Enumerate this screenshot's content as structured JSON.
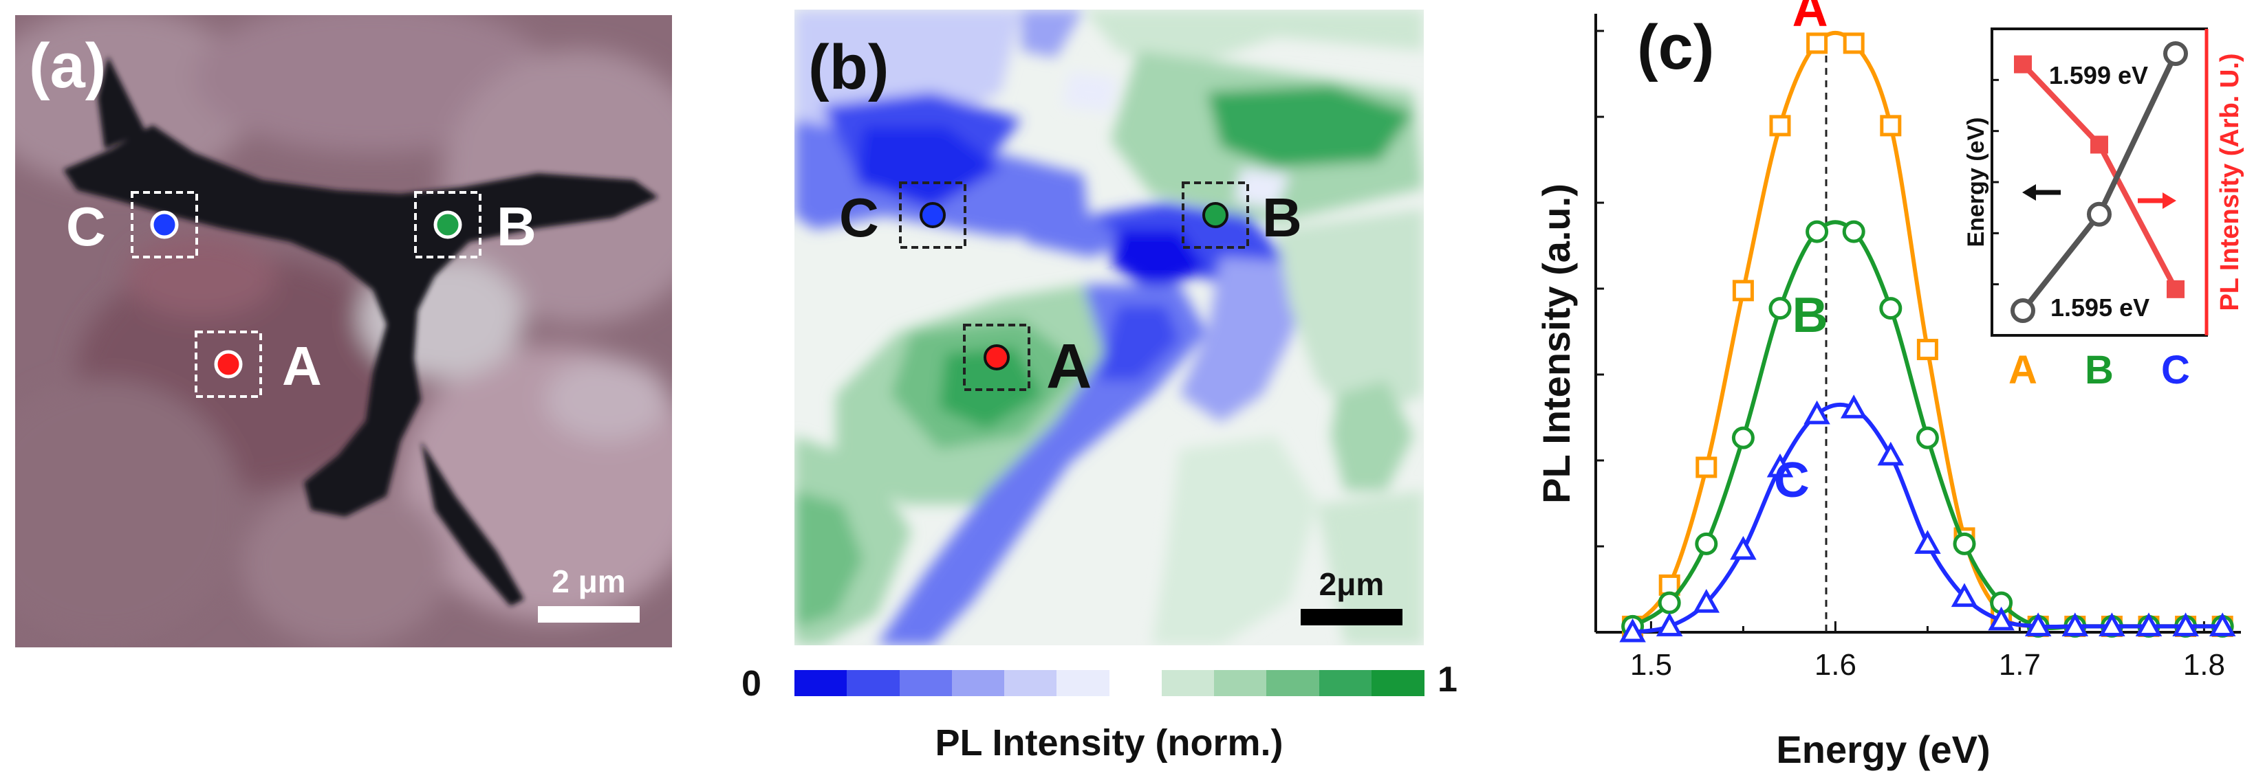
{
  "panel_a": {
    "label": "(a)",
    "scale_bar": "2 μm",
    "points": [
      {
        "name": "C",
        "color": "#1a3cff"
      },
      {
        "name": "B",
        "color": "#1fa048"
      },
      {
        "name": "A",
        "color": "#ff1a1a"
      }
    ]
  },
  "panel_b": {
    "label": "(b)",
    "scale_bar": "2μm",
    "colorbar_min": "0",
    "colorbar_max": "1",
    "colorbar_label": "PL Intensity (norm.)",
    "colorbar_colors": [
      "#0a10e8",
      "#3d4bf0",
      "#6b78f3",
      "#9aa3f5",
      "#c8cdf9",
      "#e9ecfc",
      "#ffffff",
      "#cde7d3",
      "#a5d6b1",
      "#6fbf86",
      "#35a75c",
      "#169839"
    ],
    "points": [
      {
        "name": "C",
        "color": "#1a3cff"
      },
      {
        "name": "B",
        "color": "#1fa048"
      },
      {
        "name": "A",
        "color": "#ff1a1a"
      }
    ]
  },
  "chart_data": [
    {
      "type": "line",
      "panel_label": "(c)",
      "xlabel": "Energy (eV)",
      "ylabel": "PL Intensity (a.u.)",
      "xlim": [
        1.47,
        1.82
      ],
      "ylim": [
        0,
        1.05
      ],
      "x_ticks": [
        "1.5",
        "1.6",
        "1.7",
        "1.8"
      ],
      "reference_line_x": 1.595,
      "x": [
        1.49,
        1.51,
        1.53,
        1.55,
        1.57,
        1.59,
        1.61,
        1.63,
        1.65,
        1.67,
        1.69,
        1.71,
        1.73,
        1.75,
        1.77,
        1.79,
        1.81
      ],
      "series": [
        {
          "name": "A",
          "color": "#ff9900",
          "label_color": "#ff0000",
          "marker": "square",
          "values": [
            0.01,
            0.08,
            0.28,
            0.58,
            0.86,
            1.0,
            1.0,
            0.86,
            0.48,
            0.16,
            0.03,
            0.01,
            0.01,
            0.01,
            0.01,
            0.01,
            0.01
          ]
        },
        {
          "name": "B",
          "color": "#1a9a2e",
          "label_color": "#1a9a2e",
          "marker": "circle",
          "values": [
            0.01,
            0.05,
            0.15,
            0.33,
            0.55,
            0.68,
            0.68,
            0.55,
            0.33,
            0.15,
            0.05,
            0.01,
            0.01,
            0.01,
            0.01,
            0.01,
            0.01
          ]
        },
        {
          "name": "C",
          "color": "#1e2cff",
          "label_color": "#1e2cff",
          "marker": "triangle",
          "values": [
            0.0,
            0.01,
            0.05,
            0.14,
            0.28,
            0.37,
            0.38,
            0.3,
            0.15,
            0.06,
            0.02,
            0.01,
            0.01,
            0.01,
            0.01,
            0.01,
            0.01
          ]
        }
      ]
    },
    {
      "type": "line",
      "inset": true,
      "categories": [
        "A",
        "B",
        "C"
      ],
      "category_colors": [
        "#ff9900",
        "#1a9a2e",
        "#1e2cff"
      ],
      "ylabel_left": "Energy (eV)",
      "ylabel_right": "PL Intensity (Arb. U.)",
      "annotations": [
        "1.599 eV",
        "1.595 eV"
      ],
      "series": [
        {
          "name": "Energy",
          "axis": "left",
          "color": "#555555",
          "marker": "open-circle",
          "values": [
            1.595,
            1.5965,
            1.599
          ]
        },
        {
          "name": "PL Intensity",
          "axis": "right",
          "color": "#f04a4a",
          "marker": "filled-square",
          "values": [
            0.92,
            0.62,
            0.08
          ]
        }
      ]
    }
  ]
}
